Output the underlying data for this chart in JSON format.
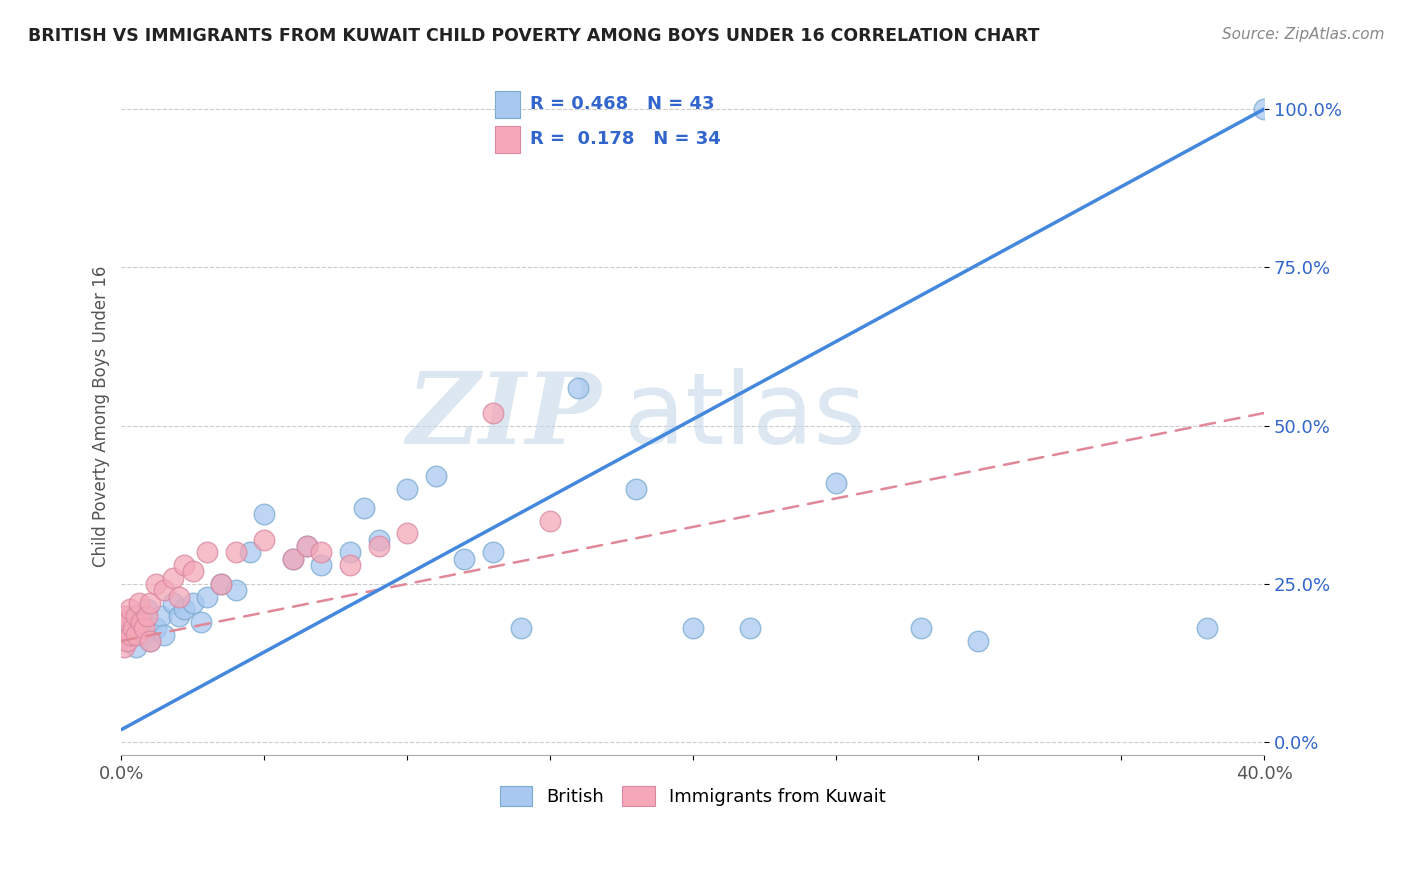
{
  "title": "BRITISH VS IMMIGRANTS FROM KUWAIT CHILD POVERTY AMONG BOYS UNDER 16 CORRELATION CHART",
  "source": "Source: ZipAtlas.com",
  "ylabel": "Child Poverty Among Boys Under 16",
  "r_british": 0.468,
  "n_british": 43,
  "r_kuwait": 0.178,
  "n_kuwait": 34,
  "british_color": "#a8c8f0",
  "kuwait_color": "#f4a8b8",
  "british_line_color": "#4488dd",
  "kuwait_line_color": "#e08898",
  "xlim": [
    0.0,
    0.4
  ],
  "ylim": [
    -0.02,
    1.05
  ],
  "yticks": [
    0.0,
    0.25,
    0.5,
    0.75,
    1.0
  ],
  "ytick_labels": [
    "0.0%",
    "25.0%",
    "50.0%",
    "75.0%",
    "100.0%"
  ],
  "xticks": [
    0.0,
    0.05,
    0.1,
    0.15,
    0.2,
    0.25,
    0.3,
    0.35,
    0.4
  ],
  "xtick_labels": [
    "0.0%",
    "",
    "",
    "",
    "",
    "",
    "",
    "",
    "40.0%"
  ],
  "watermark_zip": "ZIP",
  "watermark_atlas": "atlas",
  "background_color": "#ffffff",
  "british_x": [
    0.001,
    0.002,
    0.003,
    0.004,
    0.005,
    0.005,
    0.006,
    0.008,
    0.009,
    0.01,
    0.012,
    0.014,
    0.015,
    0.018,
    0.02,
    0.022,
    0.025,
    0.028,
    0.03,
    0.035,
    0.04,
    0.045,
    0.05,
    0.06,
    0.065,
    0.07,
    0.08,
    0.085,
    0.09,
    0.1,
    0.11,
    0.12,
    0.13,
    0.14,
    0.16,
    0.18,
    0.2,
    0.22,
    0.25,
    0.28,
    0.3,
    0.38,
    0.4
  ],
  "british_y": [
    0.18,
    0.16,
    0.2,
    0.17,
    0.15,
    0.19,
    0.18,
    0.17,
    0.21,
    0.16,
    0.18,
    0.2,
    0.17,
    0.22,
    0.2,
    0.21,
    0.22,
    0.19,
    0.23,
    0.25,
    0.24,
    0.3,
    0.36,
    0.29,
    0.31,
    0.28,
    0.3,
    0.37,
    0.32,
    0.4,
    0.42,
    0.29,
    0.3,
    0.18,
    0.56,
    0.4,
    0.18,
    0.18,
    0.41,
    0.18,
    0.16,
    0.18,
    1.0
  ],
  "kuwait_x": [
    0.001,
    0.001,
    0.001,
    0.002,
    0.002,
    0.003,
    0.003,
    0.004,
    0.005,
    0.005,
    0.006,
    0.007,
    0.008,
    0.009,
    0.01,
    0.01,
    0.012,
    0.015,
    0.018,
    0.02,
    0.022,
    0.025,
    0.03,
    0.035,
    0.04,
    0.05,
    0.06,
    0.065,
    0.07,
    0.08,
    0.09,
    0.1,
    0.13,
    0.15
  ],
  "kuwait_y": [
    0.15,
    0.18,
    0.2,
    0.16,
    0.19,
    0.17,
    0.21,
    0.18,
    0.17,
    0.2,
    0.22,
    0.19,
    0.18,
    0.2,
    0.16,
    0.22,
    0.25,
    0.24,
    0.26,
    0.23,
    0.28,
    0.27,
    0.3,
    0.25,
    0.3,
    0.32,
    0.29,
    0.31,
    0.3,
    0.28,
    0.31,
    0.33,
    0.52,
    0.35
  ],
  "british_trend_x": [
    0.0,
    0.4
  ],
  "british_trend_y": [
    0.02,
    1.0
  ],
  "kuwait_trend_x": [
    0.0,
    0.4
  ],
  "kuwait_trend_y": [
    0.16,
    0.52
  ]
}
